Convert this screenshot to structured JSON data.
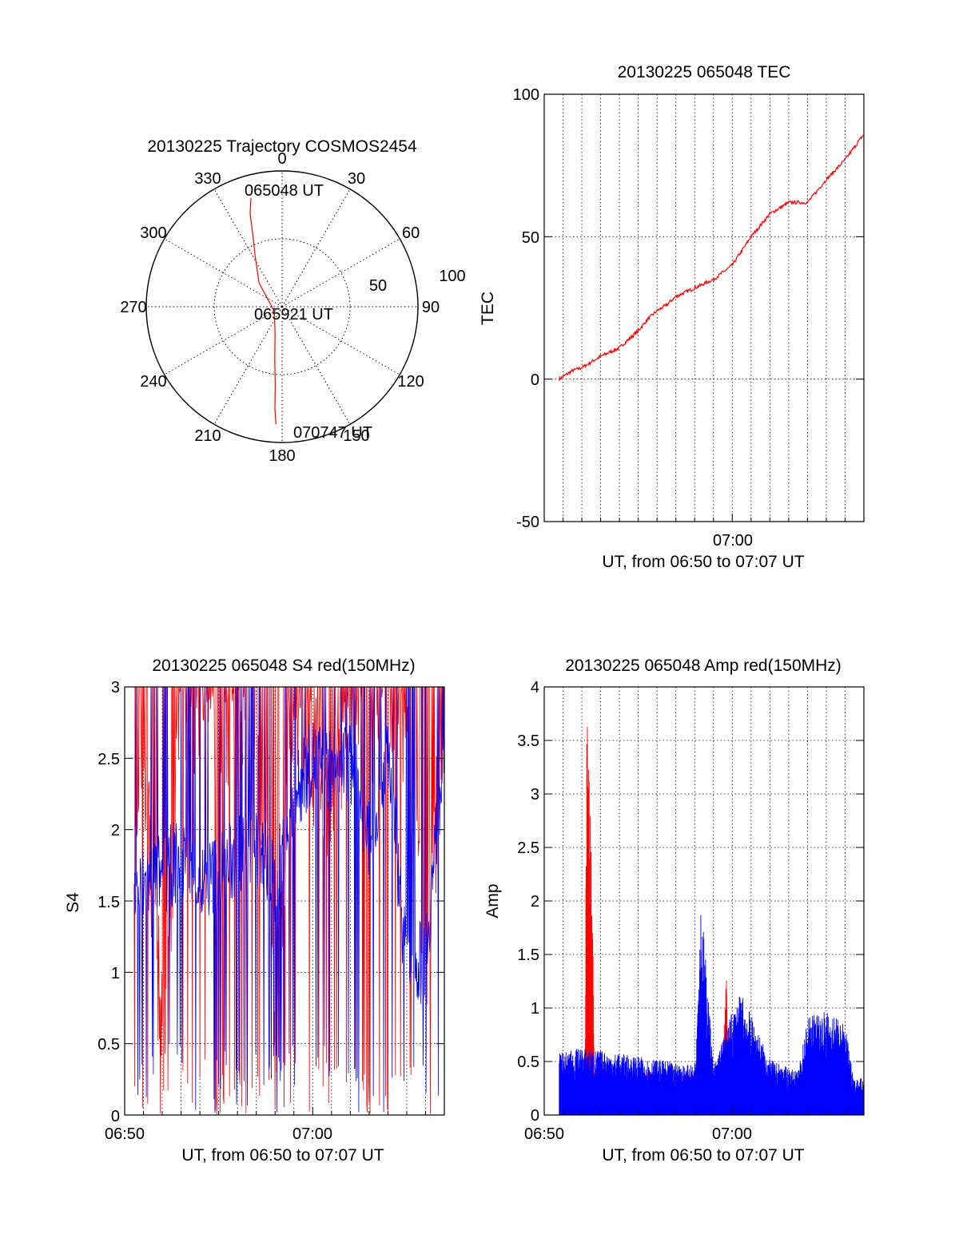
{
  "colors": {
    "red": "#ff0000",
    "blue": "#0000ff",
    "axis": "#000000",
    "background": "#ffffff"
  },
  "chart_data": [
    {
      "type": "polar",
      "title": "20130225 Trajectory COSMOS2454",
      "azimuth_labels": [
        "0",
        "30",
        "60",
        "90",
        "120",
        "150",
        "180",
        "210",
        "240",
        "270",
        "300",
        "330"
      ],
      "radial_labels": [
        "50",
        "100"
      ],
      "grid": true,
      "series": [
        {
          "color": "red",
          "points": [
            {
              "azimuth": 344,
              "elevation": 15
            },
            {
              "azimuth": 341,
              "elevation": 25
            },
            {
              "azimuth": 338,
              "elevation": 38
            },
            {
              "azimuth": 332,
              "elevation": 52
            },
            {
              "azimuth": 316,
              "elevation": 68
            },
            {
              "azimuth": 240,
              "elevation": 84
            },
            {
              "azimuth": 195,
              "elevation": 72
            },
            {
              "azimuth": 188,
              "elevation": 55
            },
            {
              "azimuth": 185,
              "elevation": 38
            },
            {
              "azimuth": 184,
              "elevation": 22
            },
            {
              "azimuth": 183,
              "elevation": 12
            }
          ]
        }
      ],
      "annotations": [
        {
          "text": "065048 UT",
          "azimuth": 344,
          "elevation": 15
        },
        {
          "text": "065921 UT",
          "azimuth": 240,
          "elevation": 84
        },
        {
          "text": "070747 UT",
          "azimuth": 183,
          "elevation": 12
        }
      ]
    },
    {
      "type": "line",
      "title": "20130225 065048 TEC",
      "xlabel": "UT, from 06:50 to 07:07 UT",
      "ylabel": "TEC",
      "xlim": [
        "06:50",
        "07:07"
      ],
      "ylim": [
        -50,
        100
      ],
      "yticks": [
        "-50",
        "0",
        "50",
        "100"
      ],
      "xticks": [
        "07:00"
      ],
      "grid": true,
      "series": [
        {
          "color": "red",
          "x": [
            "06:50:48",
            "06:51:30",
            "06:52:00",
            "06:53:00",
            "06:54:00",
            "06:55:00",
            "06:55:30",
            "06:56:00",
            "06:56:30",
            "06:57:00",
            "06:58:00",
            "06:59:00",
            "07:00:00",
            "07:01:00",
            "07:02:00",
            "07:03:00",
            "07:04:00",
            "07:05:00",
            "07:06:00",
            "07:07:00"
          ],
          "values": [
            0,
            3,
            4,
            8,
            11,
            17,
            21,
            24,
            26,
            29,
            32,
            35,
            40,
            50,
            58,
            62,
            62,
            70,
            77,
            86
          ]
        }
      ]
    },
    {
      "type": "line",
      "title": "20130225 065048 S4 red(150MHz)",
      "xlabel": "UT, from 06:50 to 07:07 UT",
      "ylabel": "S4",
      "xlim": [
        "06:50",
        "07:07"
      ],
      "ylim": [
        0,
        3
      ],
      "yticks": [
        "0",
        "0.5",
        "1",
        "1.5",
        "2",
        "2.5",
        "3"
      ],
      "xticks": [
        "06:50",
        "07:00"
      ],
      "grid": true,
      "series": [
        {
          "color": "red",
          "x": [
            "06:50:30",
            "06:51:00",
            "06:52:00",
            "06:53:00",
            "06:54:00",
            "06:55:00",
            "06:56:00",
            "06:57:00",
            "06:58:00",
            "06:59:00",
            "07:00:00",
            "07:01:00",
            "07:02:00",
            "07:03:00",
            "07:04:00",
            "07:05:00",
            "07:06:00",
            "07:07:00"
          ],
          "values": [
            1.6,
            2.6,
            0.5,
            2.8,
            2.9,
            2.7,
            2.8,
            3.0,
            0.5,
            3.0,
            2.5,
            2.2,
            3.0,
            2.8,
            2.9,
            2.7,
            1.0,
            2.8
          ]
        },
        {
          "color": "blue",
          "x": [
            "06:50:30",
            "06:51:00",
            "06:52:00",
            "06:53:00",
            "06:54:00",
            "06:55:00",
            "06:56:00",
            "06:57:00",
            "06:58:00",
            "06:59:00",
            "07:00:00",
            "07:01:00",
            "07:02:00",
            "07:03:00",
            "07:04:00",
            "07:05:00",
            "07:06:00",
            "07:07:00"
          ],
          "values": [
            1.5,
            1.6,
            1.7,
            1.8,
            1.6,
            1.7,
            1.8,
            1.9,
            1.6,
            2.2,
            2.5,
            2.4,
            2.5,
            1.9,
            2.6,
            1.0,
            1.1,
            2.6
          ]
        }
      ]
    },
    {
      "type": "line",
      "title": "20130225 065048 Amp red(150MHz)",
      "xlabel": "UT, from 06:50 to 07:07 UT",
      "ylabel": "Amp",
      "xlim": [
        "06:50",
        "07:07"
      ],
      "ylim": [
        0,
        4
      ],
      "yticks": [
        "0",
        "0.5",
        "1",
        "1.5",
        "2",
        "2.5",
        "3",
        "3.5",
        "4"
      ],
      "xticks": [
        "06:50",
        "07:00"
      ],
      "grid": true,
      "series": [
        {
          "color": "red",
          "x": [
            "06:52:10",
            "06:52:15",
            "06:52:20",
            "06:52:30",
            "06:52:40",
            "06:59:30",
            "06:59:40",
            "06:59:50"
          ],
          "values": [
            0.3,
            3.35,
            3.0,
            2.6,
            0.4,
            0.3,
            1.3,
            0.4
          ]
        },
        {
          "color": "blue",
          "x": [
            "06:50:48",
            "06:52:00",
            "06:54:00",
            "06:56:00",
            "06:58:00",
            "06:58:20",
            "06:59:00",
            "07:00:00",
            "07:00:30",
            "07:02:00",
            "07:03:30",
            "07:04:00",
            "07:05:00",
            "07:06:00",
            "07:06:30",
            "07:07:00"
          ],
          "values": [
            0.5,
            0.55,
            0.5,
            0.45,
            0.4,
            1.8,
            0.4,
            0.85,
            1.0,
            0.45,
            0.35,
            0.8,
            0.85,
            0.75,
            0.3,
            0.3
          ]
        }
      ]
    }
  ]
}
